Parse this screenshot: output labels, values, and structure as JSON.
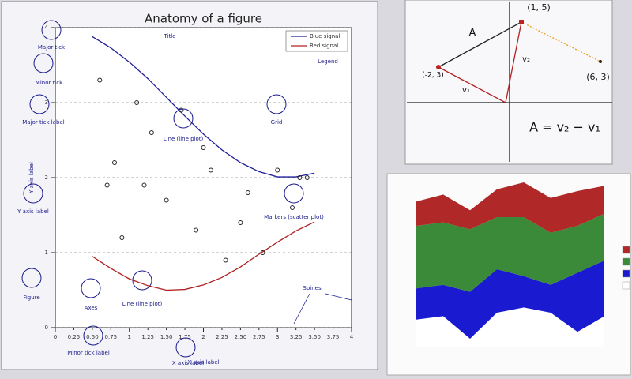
{
  "chart_data": [
    {
      "type": "line",
      "title": "Anatomy of a figure",
      "xlabel": "X axis label",
      "ylabel": "Y axis label",
      "xlim": [
        0,
        4
      ],
      "ylim": [
        0,
        4
      ],
      "xticks": [
        0,
        1,
        2,
        3,
        4
      ],
      "yticks": [
        0,
        1,
        2,
        3,
        4
      ],
      "xminorticks": [
        {
          "value": 0.25,
          "label": "0.25"
        },
        {
          "value": 0.5,
          "label": "0.50"
        },
        {
          "value": 0.75,
          "label": "0.75"
        },
        {
          "value": 1.25,
          "label": "1.25"
        },
        {
          "value": 1.5,
          "label": "1.50"
        },
        {
          "value": 1.75,
          "label": "1.75"
        },
        {
          "value": 2.25,
          "label": "2.25"
        },
        {
          "value": 2.5,
          "label": "2.50"
        },
        {
          "value": 2.75,
          "label": "2.75"
        },
        {
          "value": 3.25,
          "label": "3.25"
        },
        {
          "value": 3.5,
          "label": "3.50"
        },
        {
          "value": 3.75,
          "label": "3.75"
        }
      ],
      "grid": true,
      "legend": "upper right",
      "x": [
        0.5,
        0.75,
        1.0,
        1.25,
        1.5,
        1.75,
        2.0,
        2.25,
        2.5,
        2.75,
        3.0,
        3.25,
        3.5
      ],
      "series": [
        {
          "name": "Blue signal",
          "color": "#1f1f9a",
          "values": [
            3.88,
            3.73,
            3.54,
            3.32,
            3.07,
            2.82,
            2.58,
            2.37,
            2.2,
            2.08,
            2.01,
            2.01,
            2.06
          ]
        },
        {
          "name": "Red signal",
          "color": "#b02020",
          "values": [
            0.95,
            0.79,
            0.65,
            0.56,
            0.5,
            0.51,
            0.57,
            0.67,
            0.81,
            0.98,
            1.14,
            1.29,
            1.41
          ]
        }
      ],
      "scatter": {
        "x": [
          0.6,
          0.8,
          0.9,
          1.1,
          1.3,
          1.5,
          1.7,
          1.9,
          2.1,
          2.3,
          2.6,
          2.8,
          3.0,
          3.2,
          3.4,
          1.2,
          2.0,
          2.5,
          0.7,
          3.3
        ],
        "y": [
          3.3,
          2.2,
          1.2,
          3.0,
          2.6,
          1.7,
          2.9,
          1.3,
          2.1,
          0.9,
          1.8,
          1.0,
          2.1,
          1.6,
          2.0,
          1.9,
          2.4,
          1.4,
          1.9,
          2.0
        ]
      },
      "annotations": [
        "Major tick",
        "Minor tick",
        "Major tick label",
        "Title",
        "Legend",
        "Grid",
        "Line (line plot)",
        "Y axis label",
        "Markers (scatter plot)",
        "Figure",
        "Axes",
        "Line (line plot)",
        "Spines",
        "Minor tick label",
        "X axis label"
      ]
    },
    {
      "type": "diagram",
      "labels": [
        "(1, 5)",
        "(-2, 3)",
        "(6, 3)",
        "A",
        "v₁",
        "v₂",
        "A = v₂ − v₁"
      ]
    },
    {
      "type": "area",
      "stacked": true,
      "xlim": [
        0,
        7
      ],
      "ylim": [
        0,
        10
      ],
      "x": [
        0,
        1,
        2,
        3,
        4,
        5,
        6,
        7
      ],
      "series": [
        {
          "color": "#ffffff",
          "values": [
            1.6,
            1.8,
            0.5,
            2.0,
            2.3,
            2.0,
            0.9,
            1.8
          ]
        },
        {
          "color": "#1a1ad0",
          "values": [
            1.8,
            1.8,
            2.7,
            2.5,
            1.8,
            1.6,
            3.4,
            3.2
          ]
        },
        {
          "color": "#3a8a3a",
          "values": [
            3.6,
            3.6,
            3.6,
            3.0,
            3.4,
            3.0,
            2.7,
            2.7
          ]
        },
        {
          "color": "#b02828",
          "values": [
            1.4,
            1.6,
            1.1,
            1.6,
            2.0,
            2.0,
            2.0,
            1.6
          ]
        }
      ]
    }
  ]
}
